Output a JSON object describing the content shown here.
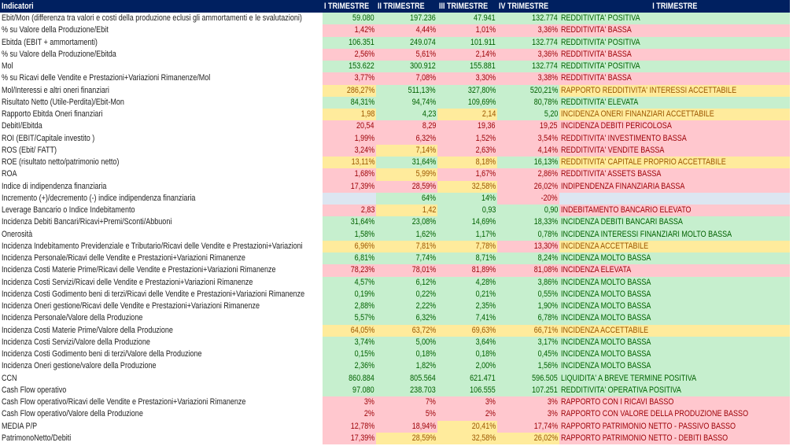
{
  "header": {
    "indicator": "Indicatori",
    "cols": [
      "I TRIMESTRE",
      "II TRIMESTRE",
      "III TRIMESTRE",
      "IV TRIMESTRE",
      "I TRIMESTRE"
    ]
  },
  "colors": {
    "G_bg": "#c6efce",
    "G_text": "#006100",
    "R_bg": "#ffc7ce",
    "R_text": "#9c0006",
    "Y_bg": "#ffeb9c",
    "Y_text": "#9c5700",
    "B_bg": "#dce6f1",
    "header_bg": "#002060"
  },
  "rows": [
    {
      "label": "Ebit/Mon (differenza tra valori e costi della produzione eclusi gli ammortamenti e le svalutazioni)",
      "values": [
        "59.080",
        "197.236",
        "47.941",
        "132.774"
      ],
      "status": "REDDITIVITA' POSITIVA",
      "cls": [
        "G",
        "G",
        "G",
        "G",
        "G"
      ]
    },
    {
      "label": "% su Valore della Produzione/Ebit",
      "values": [
        "1,42%",
        "4,44%",
        "1,01%",
        "3,36%"
      ],
      "status": "REDDITIVITA' BASSA",
      "cls": [
        "R",
        "R",
        "R",
        "R",
        "R"
      ]
    },
    {
      "label": "Ebitda (EBIT + ammortamenti)",
      "values": [
        "106.351",
        "249.074",
        "101.911",
        "132.774"
      ],
      "status": "REDDITIVITA' POSITIVA",
      "cls": [
        "G",
        "G",
        "G",
        "G",
        "G"
      ]
    },
    {
      "label": "% su Valore della Produzione/Ebitda",
      "values": [
        "2,56%",
        "5,61%",
        "2,14%",
        "3,36%"
      ],
      "status": "REDDITIVITA' BASSA",
      "cls": [
        "R",
        "R",
        "R",
        "R",
        "R"
      ]
    },
    {
      "label": "Mol",
      "values": [
        "153.622",
        "300.912",
        "155.881",
        "132.774"
      ],
      "status": "REDDITIVITA' POSITIVA",
      "cls": [
        "G",
        "G",
        "G",
        "G",
        "G"
      ]
    },
    {
      "label": "% su Ricavi delle Vendite e Prestazioni+Variazioni Rimanenze/Mol",
      "values": [
        "3,77%",
        "7,08%",
        "3,30%",
        "3,38%"
      ],
      "status": "REDDITIVITA' BASSA",
      "cls": [
        "R",
        "R",
        "R",
        "R",
        "R"
      ]
    },
    {
      "label": "Mol/Interessi e altri oneri finanziari",
      "values": [
        "286,27%",
        "511,13%",
        "327,80%",
        "520,21%"
      ],
      "status": "RAPPORTO REDDITIVITA' INTERESSI ACCETTABILE",
      "cls": [
        "Y",
        "G",
        "G",
        "G",
        "Y"
      ]
    },
    {
      "label": "Risultato Netto (Utile-Perdita)/Ebit-Mon",
      "values": [
        "84,31%",
        "94,74%",
        "109,69%",
        "80,78%"
      ],
      "status": "REDDITIVITA' ELEVATA",
      "cls": [
        "G",
        "G",
        "G",
        "G",
        "G"
      ]
    },
    {
      "label": "Rapporto Ebitda Oneri finanziari",
      "values": [
        "1,98",
        "4,23",
        "2,14",
        "5,20"
      ],
      "status": "INCIDENZA ONERI FINANZIARI ACCETTABILE",
      "cls": [
        "Y",
        "G",
        "Y",
        "G",
        "Y"
      ]
    },
    {
      "label": "DebitI/Ebitda",
      "values": [
        "20,54",
        "8,29",
        "19,36",
        "19,25"
      ],
      "status": "INCIDENZA DEBITI PERICOLOSA",
      "cls": [
        "R",
        "R",
        "R",
        "R",
        "R"
      ]
    },
    {
      "label": "ROI (EBIT/Capitale investito )",
      "values": [
        "1,99%",
        "6,32%",
        "1,52%",
        "3,54%"
      ],
      "status": "REDDITIVITA' INVESTIMENTO BASSA",
      "cls": [
        "R",
        "R",
        "R",
        "R",
        "R"
      ]
    },
    {
      "label": "ROS (Ebit/ FATT)",
      "values": [
        "3,24%",
        "7,14%",
        "2,63%",
        "4,14%"
      ],
      "status": "REDDITIVITA' VENDITE BASSA",
      "cls": [
        "R",
        "Y",
        "R",
        "R",
        "R"
      ]
    },
    {
      "label": "ROE (risultato netto/patrimonio netto)",
      "values": [
        "13,11%",
        "31,64%",
        "8,18%",
        "16,13%"
      ],
      "status": "REDDITIVITA' CAPITALE PROPRIO ACCETTABILE",
      "cls": [
        "Y",
        "G",
        "Y",
        "G",
        "Y"
      ]
    },
    {
      "label": "ROA",
      "values": [
        "1,68%",
        "5,99%",
        "1,67%",
        "2,86%"
      ],
      "status": "REDDITIVITA' ASSETS BASSA",
      "cls": [
        "R",
        "Y",
        "R",
        "R",
        "R"
      ]
    },
    {
      "label": "Indice di indipendenza finanziaria",
      "values": [
        "17,39%",
        "28,59%",
        "32,58%",
        "26,02%"
      ],
      "status": "INDIPENDENZA FINANZIARIA BASSA",
      "cls": [
        "R",
        "R",
        "Y",
        "R",
        "R"
      ]
    },
    {
      "label": "Incremento (+)/decremento (-) indice indipendenza finanziaria",
      "values": [
        "",
        "64%",
        "14%",
        "-20%"
      ],
      "status": "",
      "cls": [
        "B",
        "G",
        "G",
        "R",
        "B"
      ]
    },
    {
      "label": "Leverage Bancario o Indice Indebitamento",
      "values": [
        "2,83",
        "1,42",
        "0,93",
        "0,90"
      ],
      "status": "INDEBITAMENTO BANCARIO ELEVATO",
      "cls": [
        "R",
        "Y",
        "G",
        "G",
        "R"
      ]
    },
    {
      "label": "Incidenza Debiti Bancari/Ricavi+Premi/Sconti/Abbuoni",
      "values": [
        "31,64%",
        "23,08%",
        "14,69%",
        "18,33%"
      ],
      "status": "INCIDENZA DEBITI BANCARI BASSA",
      "cls": [
        "G",
        "G",
        "G",
        "G",
        "G"
      ]
    },
    {
      "label": "Onerosità",
      "values": [
        "1,58%",
        "1,62%",
        "1,17%",
        "0,78%"
      ],
      "status": "INCIDENZA INTERESSI FINANZIARI MOLTO BASSA",
      "cls": [
        "G",
        "G",
        "G",
        "G",
        "G"
      ]
    },
    {
      "label": "Incidenza Indebitamento Previdenziale e Tributario/Ricavi delle Vendite e Prestazioni+Variazioni",
      "values": [
        "6,96%",
        "7,81%",
        "7,78%",
        "13,30%"
      ],
      "status": "INCIDENZA ACCETTABILE",
      "cls": [
        "Y",
        "Y",
        "Y",
        "R",
        "Y"
      ]
    },
    {
      "label": "Incidenza Personale/Ricavi delle Vendite e Prestazioni+Variazioni Rimanenze",
      "values": [
        "6,81%",
        "7,74%",
        "8,71%",
        "8,24%"
      ],
      "status": "INCIDENZA MOLTO BASSA",
      "cls": [
        "G",
        "G",
        "G",
        "G",
        "G"
      ]
    },
    {
      "label": "Incidenza Costi Materie Prime/Ricavi delle Vendite e Prestazioni+Variazioni Rimanenze",
      "values": [
        "78,23%",
        "78,01%",
        "81,89%",
        "81,08%"
      ],
      "status": "INCIDENZA ELEVATA",
      "cls": [
        "R",
        "R",
        "R",
        "R",
        "R"
      ]
    },
    {
      "label": "Incidenza Costi Servizi/Ricavi delle Vendite e Prestazioni+Variazioni Rimanenze",
      "values": [
        "4,57%",
        "6,12%",
        "4,28%",
        "3,86%"
      ],
      "status": "INCIDENZA MOLTO BASSA",
      "cls": [
        "G",
        "G",
        "G",
        "G",
        "G"
      ]
    },
    {
      "label": "Incidenza Costi Godimento beni di terzi/Ricavi delle Vendite e Prestazioni+Variazioni Rimanenze",
      "values": [
        "0,19%",
        "0,22%",
        "0,21%",
        "0,55%"
      ],
      "status": "INCIDENZA MOLTO BASSA",
      "cls": [
        "G",
        "G",
        "G",
        "G",
        "G"
      ]
    },
    {
      "label": "Incidenza Oneri gestione/Ricavi delle Vendite e Prestazioni+Variazioni Rimanenze",
      "values": [
        "2,88%",
        "2,22%",
        "2,35%",
        "1,90%"
      ],
      "status": "INCIDENZA MOLTO BASSA",
      "cls": [
        "G",
        "G",
        "G",
        "G",
        "G"
      ]
    },
    {
      "label": "Incidenza Personale/Valore della Produzione",
      "values": [
        "5,57%",
        "6,32%",
        "7,41%",
        "6,78%"
      ],
      "status": "INCIDENZA MOLTO BASSA",
      "cls": [
        "G",
        "G",
        "G",
        "G",
        "G"
      ]
    },
    {
      "label": "Incidenza Costi Materie Prime/Valore della Produzione",
      "values": [
        "64,05%",
        "63,72%",
        "69,63%",
        "66,71%"
      ],
      "status": "INCIDENZA ACCETTABILE",
      "cls": [
        "Y",
        "Y",
        "Y",
        "Y",
        "Y"
      ]
    },
    {
      "label": "Incidenza Costi Servizi/Valore della Produzione",
      "values": [
        "3,74%",
        "5,00%",
        "3,64%",
        "3,17%"
      ],
      "status": "INCIDENZA MOLTO BASSA",
      "cls": [
        "G",
        "G",
        "G",
        "G",
        "G"
      ]
    },
    {
      "label": "Incidenza Costi Godimento beni di terzi/Valore della Produzione",
      "values": [
        "0,15%",
        "0,18%",
        "0,18%",
        "0,45%"
      ],
      "status": "INCIDENZA MOLTO BASSA",
      "cls": [
        "G",
        "G",
        "G",
        "G",
        "G"
      ]
    },
    {
      "label": "Incidenza Oneri gestione/valore della Produzione",
      "values": [
        "2,36%",
        "1,82%",
        "2,00%",
        "1,56%"
      ],
      "status": "INCIDENZA MOLTO BASSA",
      "cls": [
        "G",
        "G",
        "G",
        "G",
        "G"
      ]
    },
    {
      "label": "CCN",
      "values": [
        "860.884",
        "805.564",
        "621.471",
        "596.505"
      ],
      "status": "LIQUIDITA' A BREVE TERMINE POSITIVA",
      "cls": [
        "G",
        "G",
        "G",
        "G",
        "G"
      ]
    },
    {
      "label": "Cash Flow operativo",
      "values": [
        "97.080",
        "238.703",
        "106.555",
        "107.251"
      ],
      "status": "REDDITIVITA' OPERATIVA POSITIVA",
      "cls": [
        "G",
        "G",
        "G",
        "G",
        "G"
      ]
    },
    {
      "label": "Cash Flow operativo/Ricavi delle Vendite e Prestazioni+Variazioni Rimanenze",
      "values": [
        "3%",
        "7%",
        "3%",
        "3%"
      ],
      "status": "RAPPORTO CON I RICAVI BASSO",
      "cls": [
        "R",
        "R",
        "R",
        "R",
        "R"
      ]
    },
    {
      "label": "Cash Flow operativo/Valore della Produzione",
      "values": [
        "2%",
        "5%",
        "2%",
        "3%"
      ],
      "status": "RAPPORTO CON VALORE DELLA PRODUZIONE BASSO",
      "cls": [
        "R",
        "R",
        "R",
        "R",
        "R"
      ]
    },
    {
      "label": "MEDIA P/P",
      "values": [
        "12,78%",
        "18,94%",
        "20,41%",
        "17,74%"
      ],
      "status": "RAPPORTO PATRIMONIO NETTO - PASSIVO BASSO",
      "cls": [
        "R",
        "R",
        "Y",
        "R",
        "R"
      ]
    },
    {
      "label": "PatrimonoNetto/Debiti",
      "values": [
        "17,39%",
        "28,59%",
        "32,58%",
        "26,02%"
      ],
      "status": "RAPPORTO PATRIMONIO NETTO - DEBITI BASSO",
      "cls": [
        "R",
        "Y",
        "Y",
        "Y",
        "R"
      ]
    }
  ]
}
